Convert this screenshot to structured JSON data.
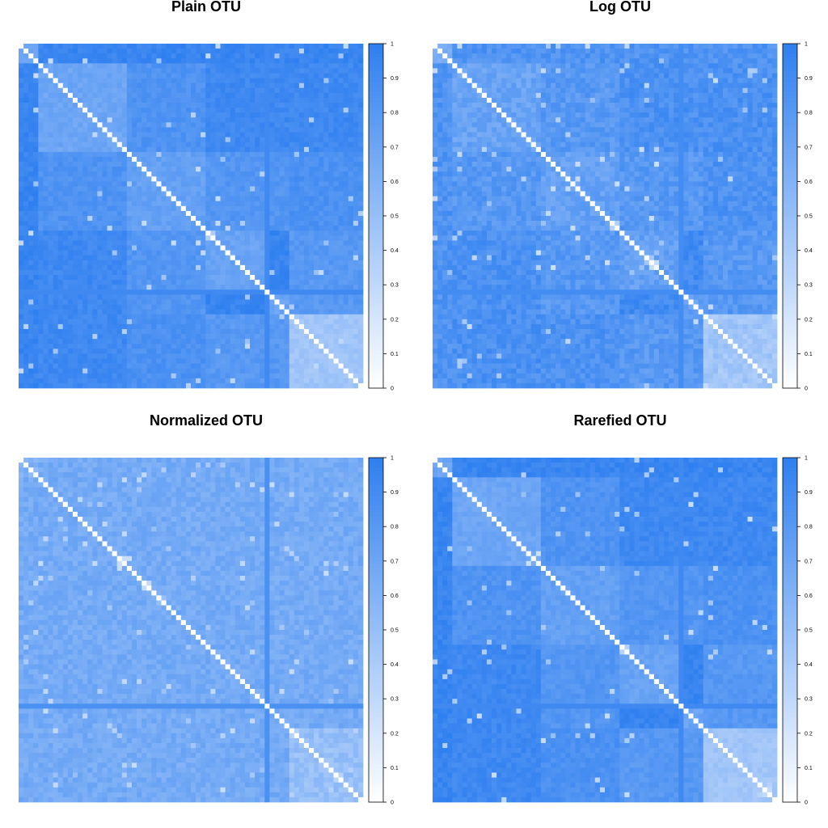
{
  "colors": {
    "low": "#ffffff",
    "high": "#2e7ff0",
    "diagonal": "#ffffff",
    "background": "#ffffff"
  },
  "chart_data": [
    {
      "type": "heatmap",
      "title": "Plain OTU",
      "n": 70,
      "legend": {
        "ticks": [
          "0",
          "0.1",
          "0.2",
          "0.3",
          "0.4",
          "0.5",
          "0.6",
          "0.7",
          "0.8",
          "0.9",
          "1"
        ],
        "range": [
          0,
          1
        ],
        "placement": "right"
      },
      "blocks": [
        {
          "rows": [
            0,
            4
          ],
          "cols": [
            0,
            4
          ],
          "value": 0.72
        },
        {
          "rows": [
            4,
            22
          ],
          "cols": [
            4,
            22
          ],
          "value": 0.7
        },
        {
          "rows": [
            22,
            38
          ],
          "cols": [
            22,
            38
          ],
          "value": 0.74
        },
        {
          "rows": [
            38,
            50
          ],
          "cols": [
            38,
            50
          ],
          "value": 0.72
        },
        {
          "rows": [
            50,
            55
          ],
          "cols": [
            50,
            55
          ],
          "value": 0.72
        },
        {
          "rows": [
            55,
            70
          ],
          "cols": [
            55,
            70
          ],
          "value": 0.45
        },
        {
          "rows": [
            0,
            4
          ],
          "cols": [
            4,
            70
          ],
          "value": 0.95
        },
        {
          "rows": [
            4,
            22
          ],
          "cols": [
            22,
            38
          ],
          "value": 0.84
        },
        {
          "rows": [
            4,
            22
          ],
          "cols": [
            38,
            70
          ],
          "value": 0.92
        },
        {
          "rows": [
            22,
            38
          ],
          "cols": [
            38,
            55
          ],
          "value": 0.82
        },
        {
          "rows": [
            22,
            38
          ],
          "cols": [
            55,
            70
          ],
          "value": 0.86
        },
        {
          "rows": [
            38,
            55
          ],
          "cols": [
            55,
            70
          ],
          "value": 0.8
        }
      ],
      "default_value": 0.95,
      "noise": 0.05,
      "highlight_lines": [
        {
          "index": 50,
          "value": 0.92
        }
      ],
      "speckle_count": 40,
      "seed": 11
    },
    {
      "type": "heatmap",
      "title": "Log OTU",
      "n": 70,
      "legend": {
        "ticks": [
          "0",
          "0.1",
          "0.2",
          "0.3",
          "0.4",
          "0.5",
          "0.6",
          "0.7",
          "0.8",
          "0.9",
          "1"
        ],
        "range": [
          0,
          1
        ],
        "placement": "right"
      },
      "blocks": [
        {
          "rows": [
            0,
            4
          ],
          "cols": [
            0,
            4
          ],
          "value": 0.65
        },
        {
          "rows": [
            4,
            22
          ],
          "cols": [
            4,
            22
          ],
          "value": 0.72
        },
        {
          "rows": [
            22,
            38
          ],
          "cols": [
            22,
            38
          ],
          "value": 0.74
        },
        {
          "rows": [
            38,
            50
          ],
          "cols": [
            38,
            50
          ],
          "value": 0.74
        },
        {
          "rows": [
            50,
            55
          ],
          "cols": [
            50,
            55
          ],
          "value": 0.74
        },
        {
          "rows": [
            55,
            70
          ],
          "cols": [
            55,
            70
          ],
          "value": 0.45
        },
        {
          "rows": [
            0,
            4
          ],
          "cols": [
            4,
            70
          ],
          "value": 0.84
        },
        {
          "rows": [
            4,
            22
          ],
          "cols": [
            22,
            38
          ],
          "value": 0.8
        },
        {
          "rows": [
            4,
            22
          ],
          "cols": [
            38,
            70
          ],
          "value": 0.86
        },
        {
          "rows": [
            22,
            38
          ],
          "cols": [
            38,
            55
          ],
          "value": 0.8
        },
        {
          "rows": [
            22,
            38
          ],
          "cols": [
            55,
            70
          ],
          "value": 0.85
        },
        {
          "rows": [
            38,
            55
          ],
          "cols": [
            55,
            70
          ],
          "value": 0.8
        }
      ],
      "default_value": 0.9,
      "noise": 0.08,
      "highlight_lines": [
        {
          "index": 50,
          "value": 0.9
        }
      ],
      "speckle_count": 50,
      "seed": 23
    },
    {
      "type": "heatmap",
      "title": "Normalized OTU",
      "n": 70,
      "legend": {
        "ticks": [
          "0",
          "0.1",
          "0.2",
          "0.3",
          "0.4",
          "0.5",
          "0.6",
          "0.7",
          "0.8",
          "0.9",
          "1"
        ],
        "range": [
          0,
          1
        ],
        "placement": "right"
      },
      "blocks": [
        {
          "rows": [
            0,
            4
          ],
          "cols": [
            0,
            4
          ],
          "value": 0.6
        },
        {
          "rows": [
            55,
            70
          ],
          "cols": [
            55,
            70
          ],
          "value": 0.5
        }
      ],
      "default_value": 0.66,
      "noise": 0.07,
      "highlight_lines": [
        {
          "index": 50,
          "value": 0.86
        }
      ],
      "speckle_count": 60,
      "seed": 37
    },
    {
      "type": "heatmap",
      "title": "Rarefied OTU",
      "n": 70,
      "legend": {
        "ticks": [
          "0",
          "0.1",
          "0.2",
          "0.3",
          "0.4",
          "0.5",
          "0.6",
          "0.7",
          "0.8",
          "0.9",
          "1"
        ],
        "range": [
          0,
          1
        ],
        "placement": "right"
      },
      "blocks": [
        {
          "rows": [
            0,
            4
          ],
          "cols": [
            0,
            4
          ],
          "value": 0.7
        },
        {
          "rows": [
            4,
            22
          ],
          "cols": [
            4,
            22
          ],
          "value": 0.7
        },
        {
          "rows": [
            22,
            38
          ],
          "cols": [
            22,
            38
          ],
          "value": 0.74
        },
        {
          "rows": [
            38,
            50
          ],
          "cols": [
            38,
            50
          ],
          "value": 0.72
        },
        {
          "rows": [
            50,
            55
          ],
          "cols": [
            50,
            55
          ],
          "value": 0.72
        },
        {
          "rows": [
            55,
            70
          ],
          "cols": [
            55,
            70
          ],
          "value": 0.45
        },
        {
          "rows": [
            0,
            4
          ],
          "cols": [
            4,
            70
          ],
          "value": 0.95
        },
        {
          "rows": [
            4,
            22
          ],
          "cols": [
            22,
            38
          ],
          "value": 0.84
        },
        {
          "rows": [
            4,
            22
          ],
          "cols": [
            38,
            70
          ],
          "value": 0.92
        },
        {
          "rows": [
            22,
            38
          ],
          "cols": [
            38,
            55
          ],
          "value": 0.82
        },
        {
          "rows": [
            22,
            38
          ],
          "cols": [
            55,
            70
          ],
          "value": 0.86
        },
        {
          "rows": [
            38,
            55
          ],
          "cols": [
            55,
            70
          ],
          "value": 0.8
        }
      ],
      "default_value": 0.95,
      "noise": 0.05,
      "highlight_lines": [
        {
          "index": 50,
          "value": 0.92
        }
      ],
      "speckle_count": 40,
      "seed": 51
    }
  ]
}
